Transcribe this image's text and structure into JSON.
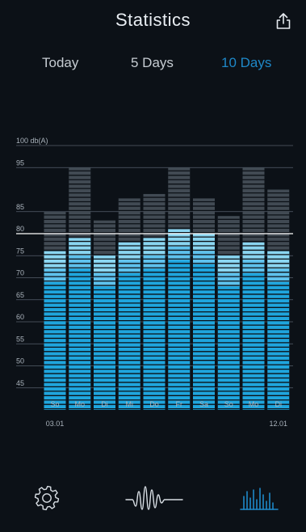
{
  "header": {
    "title": "Statistics",
    "share_icon": "share-icon"
  },
  "tabs": [
    {
      "label": "Today",
      "active": false
    },
    {
      "label": "5 Days",
      "active": false
    },
    {
      "label": "10 Days",
      "active": true
    }
  ],
  "chart_data": {
    "type": "bar",
    "title": "",
    "ylabel": "100 db(A)",
    "ylim": [
      40,
      100
    ],
    "yticks": [
      "100 db(A)",
      "95",
      "85",
      "80",
      "75",
      "70",
      "65",
      "60",
      "55",
      "50",
      "45"
    ],
    "threshold": 80,
    "categories": [
      "So",
      "Mo",
      "Di",
      "Mi",
      "Do",
      "Fr",
      "Sa",
      "So",
      "Mo",
      "Di"
    ],
    "date_labels": {
      "start": "03.01",
      "end": "12.01"
    },
    "series": [
      {
        "values": [
          85,
          95,
          83,
          88,
          89,
          95,
          88,
          84,
          95,
          90
        ]
      },
      {
        "values": [
          76,
          79,
          75,
          78,
          79,
          81,
          80,
          75,
          78,
          76
        ]
      }
    ],
    "colors": {
      "bar_dark": "#414a53",
      "bar_light": "#8ad5f0",
      "bar_mid": "#5ec1ec",
      "bar_deep": "#1fa5dd",
      "threshold_line": "#ffffff",
      "grid": "#56616c"
    }
  },
  "nav": {
    "settings_icon": "settings-gear-icon",
    "waveform_icon": "waveform-icon",
    "statistics_icon": "statistics-bars-icon",
    "active": "statistics"
  }
}
